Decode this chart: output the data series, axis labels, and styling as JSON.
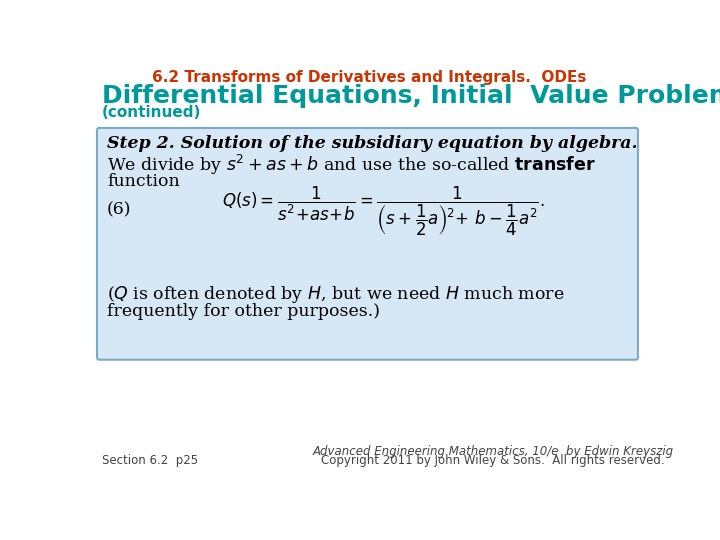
{
  "title": "6.2 Transforms of Derivatives and Integrals.  ODEs",
  "title_color": "#CC3300",
  "subtitle": "Differential Equations, Initial  Value Problems",
  "subtitle_color": "#009999",
  "continued": "(continued)",
  "continued_color": "#009999",
  "bg_color": "#FFFFFF",
  "box_bg": "#D6E8F5",
  "box_border": "#7AAAC8",
  "footer_left": "Section 6.2  p25",
  "footer_right1": "Advanced Engineering Mathematics, 10/e  by Edwin Kreyszig",
  "footer_right2": "Copyright 2011 by John Wiley & Sons.  All rights reserved.",
  "footer_color": "#444444"
}
